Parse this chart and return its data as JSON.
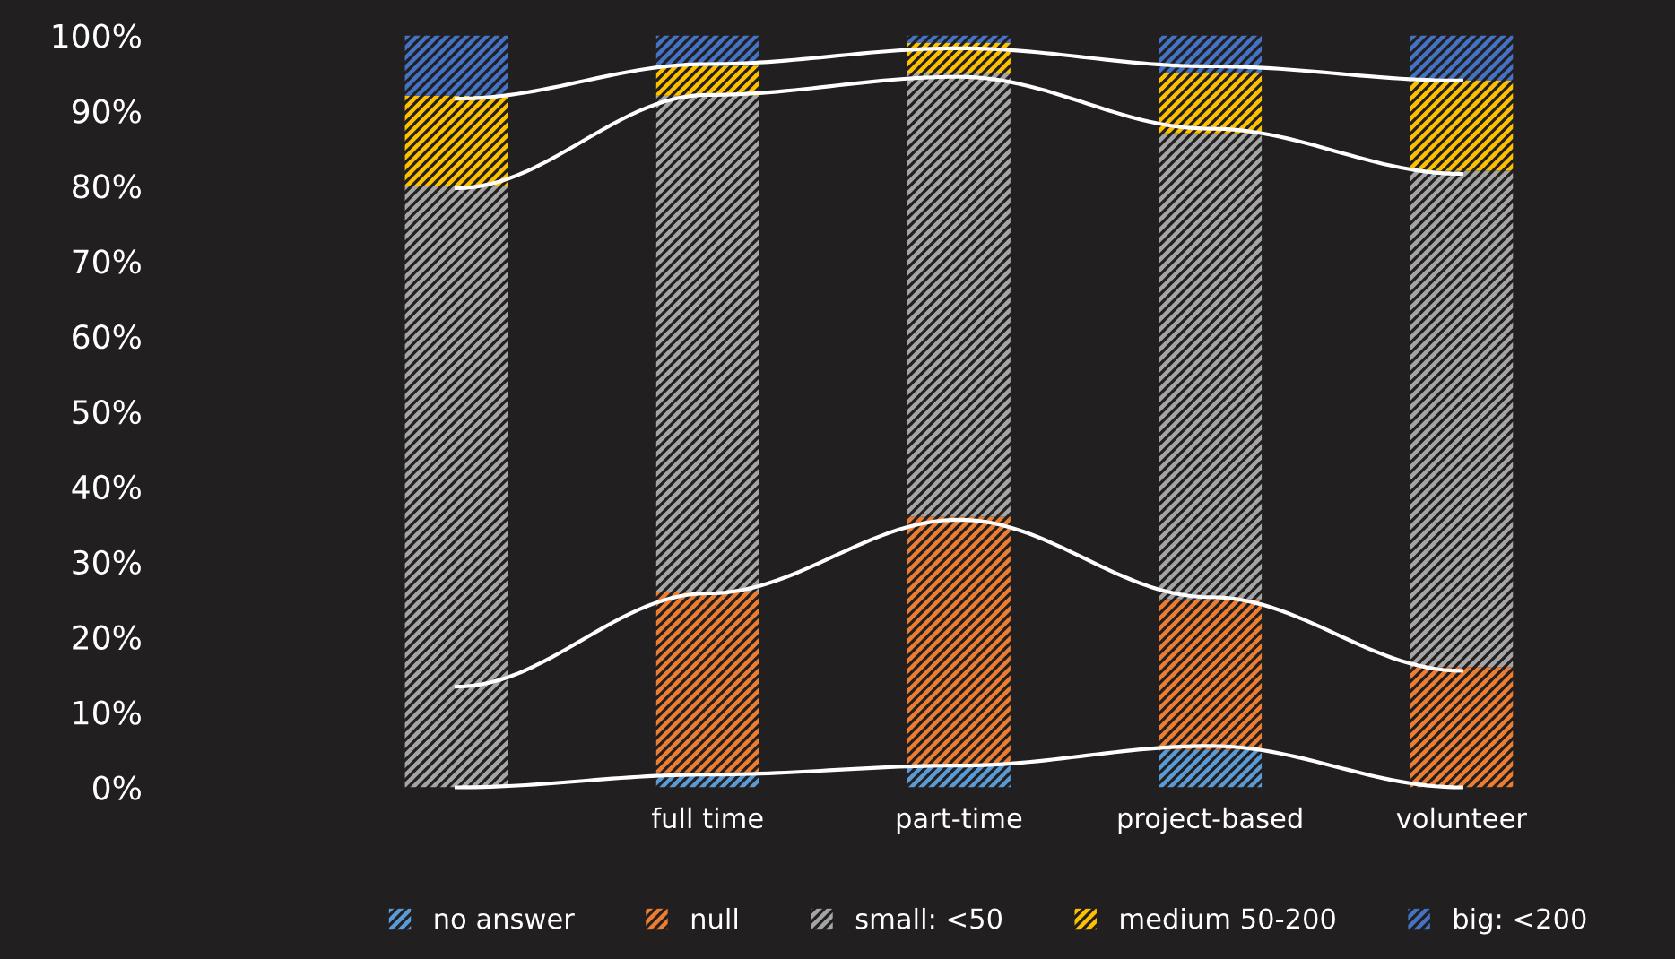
{
  "chart_data": {
    "type": "bar",
    "stacked": true,
    "categories": [
      null,
      "full time",
      "part-time",
      "project-based",
      "volunteer"
    ],
    "series": [
      {
        "name": "no answer",
        "color": "#5b9bd5",
        "values": [
          0,
          2,
          3,
          5,
          0
        ]
      },
      {
        "name": "null",
        "color": "#ed7d31",
        "values": [
          0,
          24,
          33,
          20,
          16
        ]
      },
      {
        "name": "small: <50",
        "color": "#a5a5a5",
        "values": [
          80,
          66,
          59,
          62,
          66
        ]
      },
      {
        "name": "medium 50-200",
        "color": "#ffc000",
        "values": [
          12,
          4,
          4,
          8,
          12
        ]
      },
      {
        "name": "big: <200",
        "color": "#4472c4",
        "values": [
          8,
          4,
          1,
          5,
          6
        ]
      },
      {
        "type": "line",
        "color": "#ffffff",
        "values": [
          0,
          1.7,
          2.9,
          5.5,
          0
        ]
      },
      {
        "type": "line",
        "color": "#ffffff",
        "values": [
          13.4,
          25.8,
          35.6,
          25.3,
          15.5
        ]
      },
      {
        "type": "line",
        "color": "#ffffff",
        "values": [
          79.7,
          92.1,
          94.5,
          87.6,
          81.6
        ]
      },
      {
        "type": "line",
        "color": "#ffffff",
        "values": [
          91.6,
          96.2,
          98.3,
          95.9,
          94
        ]
      }
    ],
    "ylim": [
      0,
      100
    ],
    "yticks": [
      {
        "value": 0,
        "label": "0%"
      },
      {
        "value": 10,
        "label": "10%"
      },
      {
        "value": 20,
        "label": "20%"
      },
      {
        "value": 30,
        "label": "30%"
      },
      {
        "value": 40,
        "label": "40%"
      },
      {
        "value": 50,
        "label": "50%"
      },
      {
        "value": 60,
        "label": "60%"
      },
      {
        "value": 70,
        "label": "70%"
      },
      {
        "value": 80,
        "label": "80%"
      },
      {
        "value": 90,
        "label": "90%"
      },
      {
        "value": 100,
        "label": "100%"
      }
    ],
    "grid": false,
    "legend": "bottom"
  }
}
